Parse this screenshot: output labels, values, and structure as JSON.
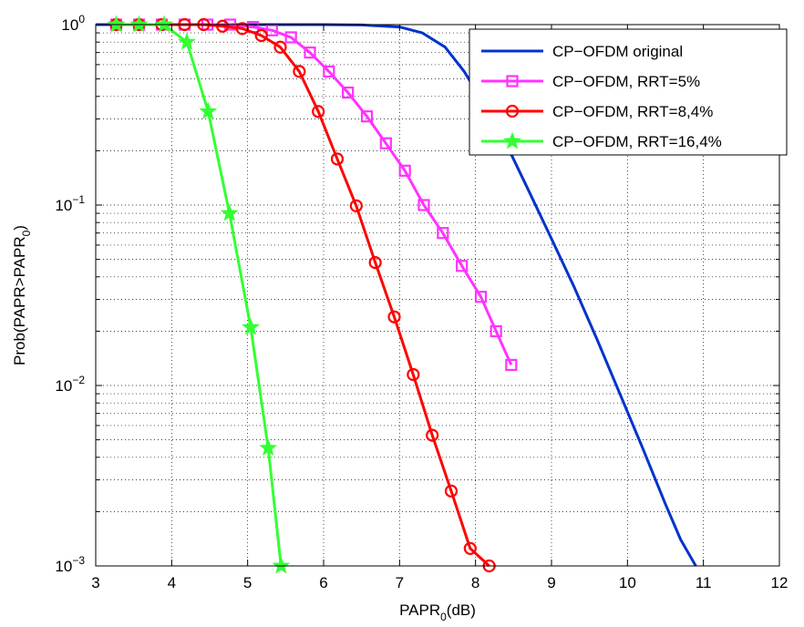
{
  "chart_data": {
    "type": "line",
    "title": "",
    "xlabel": "PAPR",
    "xlabel_sub": "0",
    "xlabel_suffix": "(dB)",
    "ylabel": "Prob(PAPR>PAPR",
    "ylabel_sub": "0",
    "ylabel_suffix": ")",
    "xlim": [
      3,
      12
    ],
    "ylim": [
      0.001,
      1
    ],
    "yscale": "log",
    "grid": true,
    "legend_position": "top-right",
    "xticks": [
      "3",
      "4",
      "5",
      "6",
      "7",
      "8",
      "9",
      "10",
      "11",
      "12"
    ],
    "yticks": [
      {
        "base": "10",
        "exp": "0",
        "value": 1
      },
      {
        "base": "10",
        "exp": "−1",
        "value": 0.1
      },
      {
        "base": "10",
        "exp": "−2",
        "value": 0.01
      },
      {
        "base": "10",
        "exp": "−3",
        "value": 0.001
      }
    ],
    "series": [
      {
        "name": "CP−OFDM original",
        "color": "#0033cc",
        "marker": "none",
        "x": [
          3.0,
          4.0,
          5.0,
          6.0,
          6.5,
          7.0,
          7.3,
          7.6,
          7.85,
          8.1,
          8.4,
          8.7,
          9.0,
          9.3,
          9.6,
          9.9,
          10.2,
          10.5,
          10.7,
          10.9
        ],
        "y": [
          1,
          1,
          1,
          1,
          0.995,
          0.97,
          0.9,
          0.75,
          0.55,
          0.37,
          0.22,
          0.12,
          0.065,
          0.035,
          0.018,
          0.009,
          0.0045,
          0.0022,
          0.0014,
          0.001
        ]
      },
      {
        "name": "CP−OFDM, RRT=5%",
        "color": "#ff33ff",
        "marker": "square",
        "x": [
          3.27,
          3.57,
          3.87,
          4.17,
          4.47,
          4.77,
          5.07,
          5.32,
          5.57,
          5.82,
          6.07,
          6.32,
          6.57,
          6.82,
          7.07,
          7.32,
          7.57,
          7.82,
          8.07,
          8.27,
          8.47
        ],
        "y": [
          1,
          1,
          1,
          1,
          1,
          1,
          0.97,
          0.93,
          0.85,
          0.7,
          0.55,
          0.42,
          0.31,
          0.22,
          0.155,
          0.1,
          0.07,
          0.046,
          0.031,
          0.02,
          0.013
        ]
      },
      {
        "name": "CP−OFDM, RRT=8,4%",
        "color": "#ff0000",
        "marker": "circle",
        "x": [
          3.27,
          3.57,
          3.87,
          4.17,
          4.42,
          4.67,
          4.93,
          5.18,
          5.43,
          5.68,
          5.93,
          6.18,
          6.43,
          6.68,
          6.93,
          7.18,
          7.43,
          7.68,
          7.93,
          8.18
        ],
        "y": [
          1,
          1,
          1,
          1,
          1,
          0.98,
          0.95,
          0.87,
          0.75,
          0.55,
          0.33,
          0.18,
          0.099,
          0.048,
          0.024,
          0.0115,
          0.0053,
          0.0026,
          0.00125,
          0.001
        ]
      },
      {
        "name": "CP−OFDM, RRT=16,4%",
        "color": "#33ff33",
        "marker": "star",
        "x": [
          3.27,
          3.57,
          3.9,
          4.2,
          4.48,
          4.76,
          5.04,
          5.27,
          5.44
        ],
        "y": [
          1,
          1,
          1,
          0.8,
          0.33,
          0.09,
          0.021,
          0.0045,
          0.001
        ]
      }
    ]
  }
}
